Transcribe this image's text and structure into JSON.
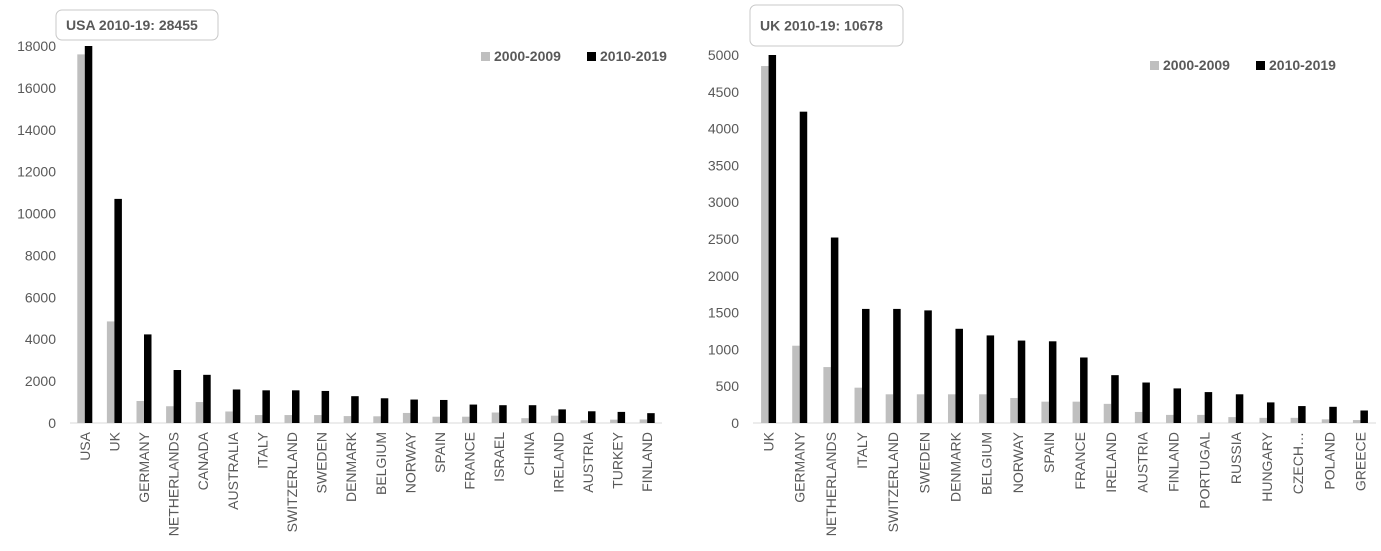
{
  "chart_data": [
    {
      "type": "bar",
      "annotation": "USA 2010-19: 28455",
      "categories": [
        "USA",
        "UK",
        "GERMANY",
        "NETHERLANDS",
        "CANADA",
        "AUSTRALIA",
        "ITALY",
        "SWITZERLAND",
        "SWEDEN",
        "DENMARK",
        "BELGIUM",
        "NORWAY",
        "SPAIN",
        "FRANCE",
        "ISRAEL",
        "CHINA",
        "IRELAND",
        "AUSTRIA",
        "TURKEY",
        "FINLAND"
      ],
      "series": [
        {
          "name": "2000-2009",
          "color": "#bfbfbf",
          "values": [
            17600,
            4850,
            1050,
            800,
            1000,
            550,
            380,
            380,
            380,
            330,
            320,
            480,
            300,
            300,
            500,
            230,
            350,
            130,
            160,
            170
          ]
        },
        {
          "name": "2010-2019",
          "color": "#000000",
          "values": [
            18000,
            10700,
            4230,
            2530,
            2300,
            1600,
            1560,
            1560,
            1530,
            1280,
            1180,
            1120,
            1100,
            880,
            850,
            850,
            650,
            560,
            530,
            470
          ]
        }
      ],
      "ylim": [
        0,
        18000
      ],
      "yticks": [
        0,
        2000,
        4000,
        6000,
        8000,
        10000,
        12000,
        14000,
        16000,
        18000
      ],
      "legend": "top-right",
      "grid": false
    },
    {
      "type": "bar",
      "annotation": "UK 2010-19: 10678",
      "categories": [
        "UK",
        "GERMANY",
        "NETHERLANDS",
        "ITALY",
        "SWITZERLAND",
        "SWEDEN",
        "DENMARK",
        "BELGIUM",
        "NORWAY",
        "SPAIN",
        "FRANCE",
        "IRELAND",
        "AUSTRIA",
        "FINLAND",
        "PORTUGAL",
        "RUSSIA",
        "HUNGARY",
        "CZECH…",
        "POLAND",
        "GREECE"
      ],
      "series": [
        {
          "name": "2000-2009",
          "color": "#bfbfbf",
          "values": [
            4850,
            1050,
            760,
            480,
            390,
            390,
            390,
            390,
            340,
            290,
            290,
            260,
            150,
            110,
            110,
            80,
            70,
            70,
            50,
            40
          ]
        },
        {
          "name": "2010-2019",
          "color": "#000000",
          "values": [
            5000,
            4230,
            2520,
            1550,
            1550,
            1530,
            1280,
            1190,
            1120,
            1110,
            890,
            650,
            550,
            470,
            420,
            390,
            280,
            230,
            220,
            170
          ]
        }
      ],
      "ylim": [
        0,
        5000
      ],
      "yticks": [
        0,
        500,
        1000,
        1500,
        2000,
        2500,
        3000,
        3500,
        4000,
        4500,
        5000
      ],
      "legend": "top-right",
      "grid": false
    }
  ]
}
